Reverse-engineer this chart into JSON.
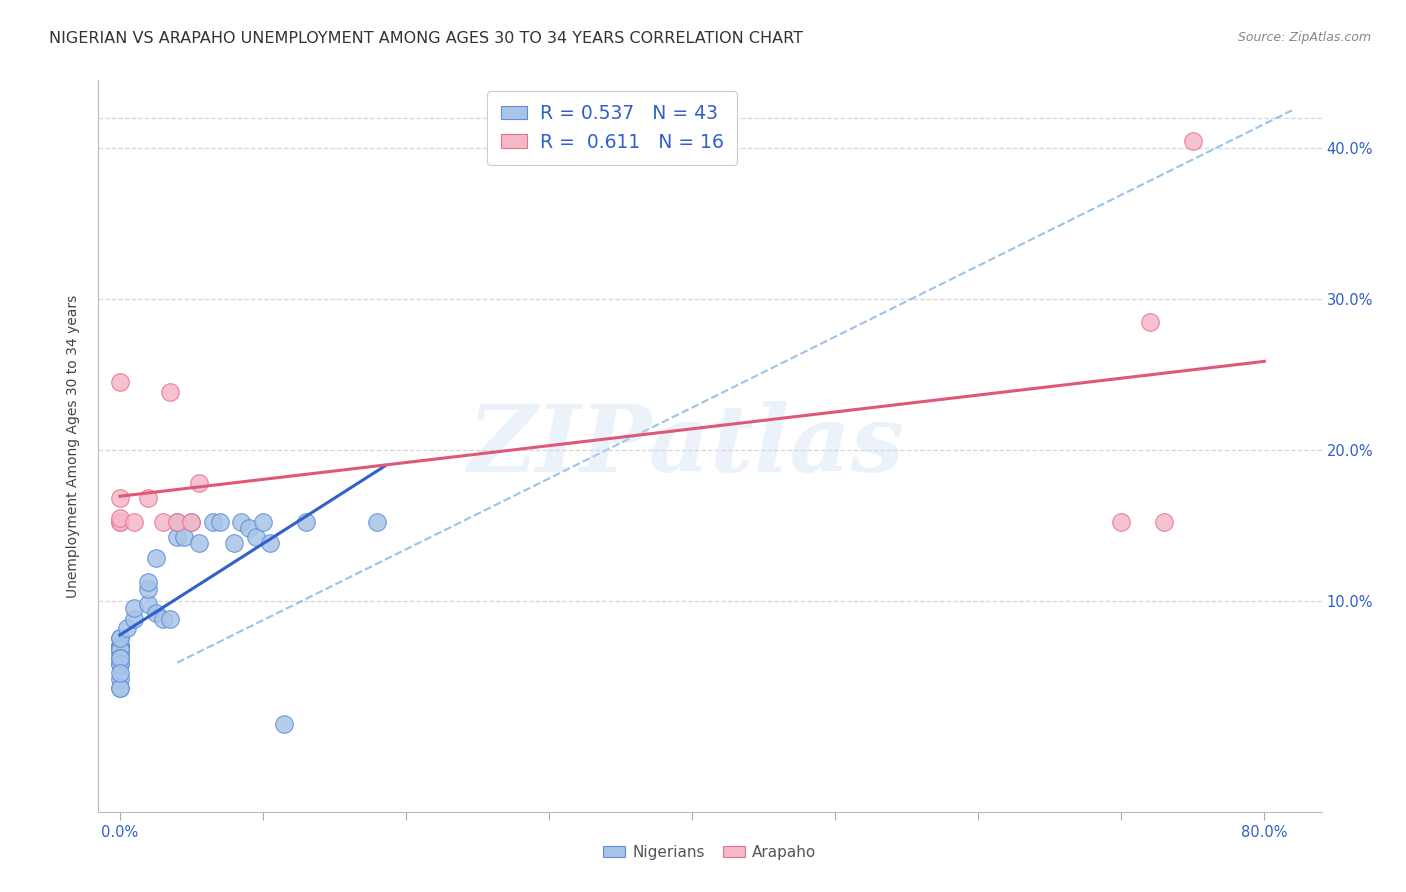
{
  "title": "NIGERIAN VS ARAPAHO UNEMPLOYMENT AMONG AGES 30 TO 34 YEARS CORRELATION CHART",
  "source": "Source: ZipAtlas.com",
  "ylabel": "Unemployment Among Ages 30 to 34 years",
  "xlabel_ticks": [
    "0.0%",
    "",
    "",
    "",
    "",
    "",
    "",
    "",
    "80.0%"
  ],
  "ytick_labels": [
    "10.0%",
    "20.0%",
    "30.0%",
    "40.0%"
  ],
  "xlim": [
    -0.015,
    0.84
  ],
  "ylim": [
    -0.04,
    0.445
  ],
  "nigerians_x": [
    0.0,
    0.0,
    0.0,
    0.0,
    0.0,
    0.0,
    0.0,
    0.0,
    0.0,
    0.0,
    0.0,
    0.0,
    0.0,
    0.0,
    0.0,
    0.0,
    0.0,
    0.005,
    0.01,
    0.01,
    0.02,
    0.02,
    0.02,
    0.025,
    0.025,
    0.03,
    0.035,
    0.04,
    0.04,
    0.045,
    0.05,
    0.055,
    0.065,
    0.07,
    0.08,
    0.085,
    0.09,
    0.095,
    0.1,
    0.105,
    0.115,
    0.13,
    0.18
  ],
  "nigerians_y": [
    0.07,
    0.075,
    0.07,
    0.065,
    0.07,
    0.068,
    0.068,
    0.068,
    0.075,
    0.062,
    0.058,
    0.048,
    0.042,
    0.042,
    0.058,
    0.062,
    0.052,
    0.082,
    0.088,
    0.095,
    0.098,
    0.108,
    0.112,
    0.092,
    0.128,
    0.088,
    0.088,
    0.142,
    0.152,
    0.142,
    0.152,
    0.138,
    0.152,
    0.152,
    0.138,
    0.152,
    0.148,
    0.142,
    0.152,
    0.138,
    0.018,
    0.152,
    0.152
  ],
  "arapaho_x": [
    0.0,
    0.0,
    0.0,
    0.0,
    0.0,
    0.01,
    0.02,
    0.03,
    0.035,
    0.04,
    0.05,
    0.055,
    0.7,
    0.72,
    0.73,
    0.75
  ],
  "arapaho_y": [
    0.152,
    0.152,
    0.245,
    0.155,
    0.168,
    0.152,
    0.168,
    0.152,
    0.238,
    0.152,
    0.152,
    0.178,
    0.152,
    0.285,
    0.152,
    0.405
  ],
  "nigerian_color": "#a8c4e8",
  "arapaho_color": "#f5b8c8",
  "nigerian_edge_color": "#5b8dd9",
  "arapaho_edge_color": "#e8708a",
  "nigerian_line_color": "#3060c8",
  "arapaho_line_color": "#e05878",
  "dashed_line_color": "#90bce8",
  "title_fontsize": 11.5,
  "axis_label_fontsize": 10,
  "tick_fontsize": 10.5,
  "legend_R_N_color": "#3060c8",
  "watermark": "ZIPatlas",
  "background_color": "#ffffff",
  "grid_color": "#cccccc",
  "legend_label1": "R = 0.537   N = 43",
  "legend_label2": "R =  0.611   N = 16"
}
